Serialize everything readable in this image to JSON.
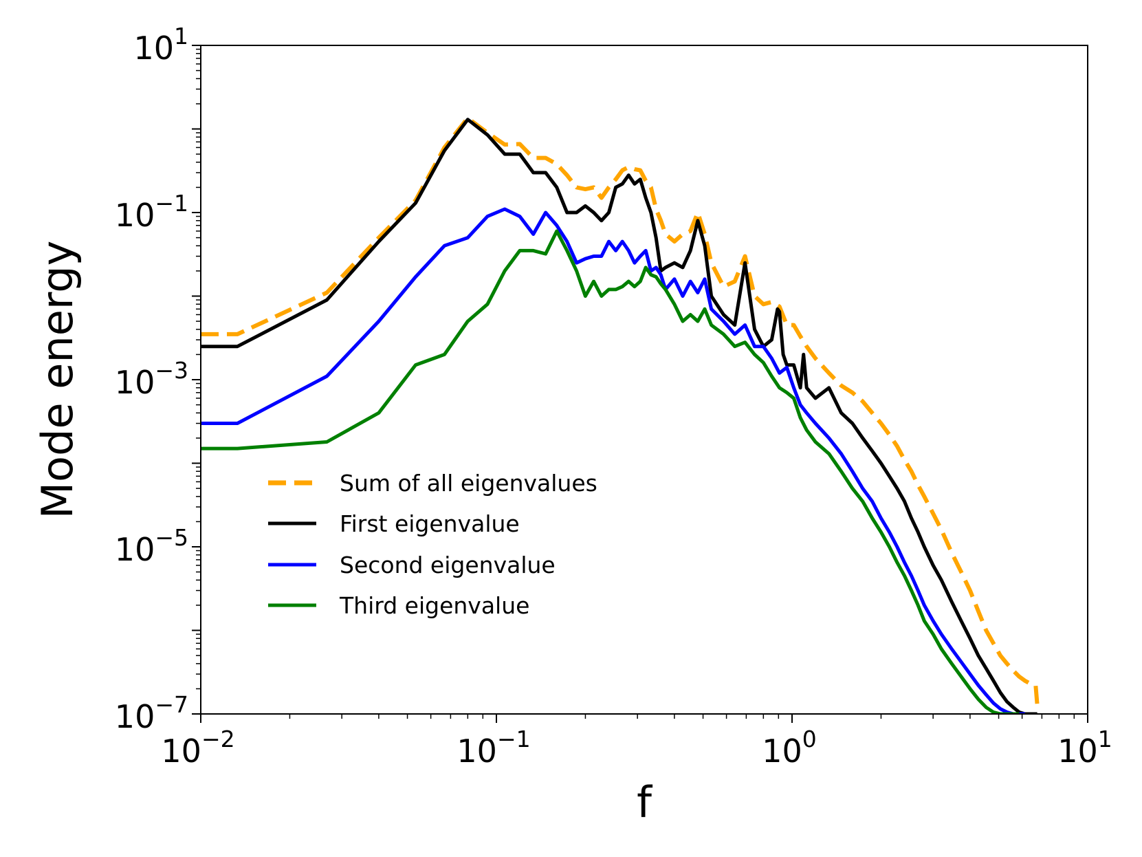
{
  "chart_data": {
    "type": "line",
    "title": "",
    "xlabel": "f",
    "ylabel": "Mode energy",
    "xscale": "log",
    "yscale": "log",
    "xlim": [
      0.01,
      10
    ],
    "ylim": [
      1e-07,
      10
    ],
    "grid": false,
    "legend_position": "lower-left",
    "x_ticks": [
      {
        "base": "10",
        "exp": "−2"
      },
      {
        "base": "10",
        "exp": "−1"
      },
      {
        "base": "10",
        "exp": "0"
      },
      {
        "base": "10",
        "exp": "1"
      }
    ],
    "y_ticks": [
      {
        "base": "10",
        "exp": "−7"
      },
      {
        "base": "10",
        "exp": "−5"
      },
      {
        "base": "10",
        "exp": "−3"
      },
      {
        "base": "10",
        "exp": "−1"
      },
      {
        "base": "10",
        "exp": "1"
      }
    ],
    "series": [
      {
        "name": "Sum of all eigenvalues",
        "color": "#FFA500",
        "style": "dashed",
        "x": [
          0.01,
          0.0133,
          0.0267,
          0.04,
          0.0533,
          0.0667,
          0.08,
          0.0933,
          0.1067,
          0.12,
          0.1333,
          0.1467,
          0.16,
          0.1733,
          0.1867,
          0.2,
          0.2133,
          0.2267,
          0.24,
          0.2533,
          0.2667,
          0.28,
          0.2933,
          0.3067,
          0.32,
          0.3333,
          0.3467,
          0.36,
          0.3733,
          0.4,
          0.4267,
          0.4533,
          0.48,
          0.5067,
          0.5333,
          0.5867,
          0.64,
          0.6933,
          0.7467,
          0.8,
          0.8533,
          0.9067,
          0.96,
          1.0133,
          1.0667,
          1.12,
          1.2,
          1.3333,
          1.4667,
          1.6,
          1.7333,
          1.8667,
          2.0,
          2.1333,
          2.2667,
          2.4,
          2.5333,
          2.6667,
          2.8,
          3.0,
          3.2,
          3.4667,
          3.7333,
          4.0,
          4.2667,
          4.5333,
          4.8,
          5.0667,
          5.3333,
          5.6,
          5.8667,
          6.1333,
          6.4,
          6.6667,
          6.75
        ],
        "y": [
          0.0035,
          0.0035,
          0.011,
          0.05,
          0.14,
          0.6,
          1.35,
          0.9,
          0.65,
          0.66,
          0.45,
          0.45,
          0.38,
          0.28,
          0.2,
          0.19,
          0.2,
          0.15,
          0.2,
          0.25,
          0.32,
          0.35,
          0.33,
          0.32,
          0.24,
          0.2,
          0.11,
          0.08,
          0.055,
          0.045,
          0.055,
          0.06,
          0.1,
          0.055,
          0.025,
          0.013,
          0.015,
          0.03,
          0.01,
          0.008,
          0.0085,
          0.0075,
          0.0045,
          0.0045,
          0.0033,
          0.0025,
          0.0018,
          0.0012,
          0.00085,
          0.0007,
          0.00055,
          0.0004,
          0.0003,
          0.00022,
          0.00016,
          0.00011,
          8e-05,
          5.5e-05,
          4e-05,
          2.5e-05,
          1.6e-05,
          8.5e-06,
          5e-06,
          3e-06,
          1.7e-06,
          1e-06,
          7e-07,
          5e-07,
          4e-07,
          3.3e-07,
          2.8e-07,
          2.5e-07,
          2.3e-07,
          2.2e-07,
          1.3e-07
        ]
      },
      {
        "name": "First eigenvalue",
        "color": "#000000",
        "style": "solid",
        "x": [
          0.01,
          0.0133,
          0.0267,
          0.04,
          0.0533,
          0.0667,
          0.08,
          0.0933,
          0.1067,
          0.12,
          0.1333,
          0.1467,
          0.16,
          0.1733,
          0.1867,
          0.2,
          0.2133,
          0.2267,
          0.24,
          0.2533,
          0.2667,
          0.28,
          0.2933,
          0.3067,
          0.32,
          0.3333,
          0.3467,
          0.36,
          0.3733,
          0.4,
          0.4267,
          0.4533,
          0.48,
          0.5067,
          0.5333,
          0.5867,
          0.64,
          0.6933,
          0.7467,
          0.8,
          0.8533,
          0.8933,
          0.9067,
          0.9333,
          0.96,
          1.0133,
          1.0667,
          1.0933,
          1.12,
          1.2,
          1.3333,
          1.4667,
          1.6,
          1.7333,
          1.8667,
          2.0,
          2.1333,
          2.2667,
          2.4,
          2.5333,
          2.6667,
          2.8,
          3.0,
          3.2,
          3.4667,
          3.7333,
          4.0,
          4.2667,
          4.5333,
          4.8,
          5.0667,
          5.3333,
          5.6,
          5.8667,
          6.1333,
          6.4,
          6.6667,
          6.75
        ],
        "y": [
          0.0025,
          0.0025,
          0.009,
          0.045,
          0.13,
          0.55,
          1.3,
          0.85,
          0.5,
          0.5,
          0.3,
          0.3,
          0.2,
          0.1,
          0.1,
          0.12,
          0.1,
          0.08,
          0.1,
          0.2,
          0.22,
          0.28,
          0.22,
          0.25,
          0.15,
          0.1,
          0.05,
          0.02,
          0.022,
          0.025,
          0.022,
          0.035,
          0.08,
          0.04,
          0.01,
          0.006,
          0.0045,
          0.025,
          0.004,
          0.0025,
          0.003,
          0.007,
          0.0065,
          0.002,
          0.0015,
          0.0015,
          0.0008,
          0.002,
          0.0008,
          0.0006,
          0.0008,
          0.0004,
          0.0003,
          0.0002,
          0.00014,
          0.0001,
          7e-05,
          5e-05,
          3.5e-05,
          2.2e-05,
          1.5e-05,
          1e-05,
          6e-06,
          4e-06,
          2.2e-06,
          1.3e-06,
          8e-07,
          5e-07,
          3.5e-07,
          2.5e-07,
          1.8e-07,
          1.4e-07,
          1.2e-07,
          1.05e-07,
          1e-07,
          1e-07,
          1e-07,
          1e-07
        ]
      },
      {
        "name": "Second eigenvalue",
        "color": "#0000FF",
        "style": "solid",
        "x": [
          0.01,
          0.0133,
          0.0267,
          0.04,
          0.0533,
          0.0667,
          0.08,
          0.0933,
          0.1067,
          0.12,
          0.1333,
          0.1467,
          0.16,
          0.1733,
          0.1867,
          0.2,
          0.2133,
          0.2267,
          0.24,
          0.2533,
          0.2667,
          0.28,
          0.2933,
          0.3067,
          0.32,
          0.3333,
          0.3467,
          0.36,
          0.3733,
          0.4,
          0.4267,
          0.4533,
          0.48,
          0.5067,
          0.5333,
          0.5867,
          0.64,
          0.6933,
          0.7467,
          0.8,
          0.8533,
          0.9067,
          0.96,
          1.0133,
          1.0667,
          1.12,
          1.2,
          1.3333,
          1.4667,
          1.6,
          1.7333,
          1.8667,
          2.0,
          2.1333,
          2.2667,
          2.4,
          2.5333,
          2.6667,
          2.8,
          3.0,
          3.2,
          3.4667,
          3.7333,
          4.0,
          4.2667,
          4.5333,
          4.8,
          5.0667,
          5.3333,
          5.6,
          5.8667,
          6.1333
        ],
        "y": [
          0.0003,
          0.0003,
          0.0011,
          0.005,
          0.017,
          0.04,
          0.05,
          0.09,
          0.11,
          0.09,
          0.055,
          0.1,
          0.07,
          0.045,
          0.025,
          0.028,
          0.03,
          0.03,
          0.045,
          0.035,
          0.045,
          0.035,
          0.025,
          0.03,
          0.035,
          0.02,
          0.022,
          0.018,
          0.012,
          0.016,
          0.01,
          0.015,
          0.011,
          0.016,
          0.007,
          0.005,
          0.0035,
          0.0045,
          0.0025,
          0.0025,
          0.0018,
          0.0012,
          0.0014,
          0.0008,
          0.0005,
          0.0004,
          0.0003,
          0.0002,
          0.00013,
          8e-05,
          5e-05,
          3.5e-05,
          2.2e-05,
          1.5e-05,
          1e-05,
          6.5e-06,
          4.5e-06,
          3e-06,
          2e-06,
          1.3e-06,
          9e-07,
          6e-07,
          4.2e-07,
          3e-07,
          2.2e-07,
          1.7e-07,
          1.35e-07,
          1.15e-07,
          1.05e-07,
          1e-07,
          1e-07,
          1e-07
        ]
      },
      {
        "name": "Third eigenvalue",
        "color": "#008000",
        "style": "solid",
        "x": [
          0.01,
          0.0133,
          0.0267,
          0.04,
          0.0533,
          0.0667,
          0.08,
          0.0933,
          0.1067,
          0.12,
          0.1333,
          0.1467,
          0.16,
          0.1733,
          0.1867,
          0.2,
          0.2133,
          0.2267,
          0.24,
          0.2533,
          0.2667,
          0.28,
          0.2933,
          0.3067,
          0.32,
          0.3333,
          0.3467,
          0.36,
          0.3733,
          0.4,
          0.4267,
          0.4533,
          0.48,
          0.5067,
          0.5333,
          0.5867,
          0.64,
          0.6933,
          0.7467,
          0.8,
          0.8533,
          0.9067,
          0.96,
          1.0133,
          1.0667,
          1.12,
          1.2,
          1.3333,
          1.4667,
          1.6,
          1.7333,
          1.8667,
          2.0,
          2.1333,
          2.2667,
          2.4,
          2.5333,
          2.6667,
          2.8,
          3.0,
          3.2,
          3.4667,
          3.7333,
          4.0,
          4.2667,
          4.5333,
          4.8,
          5.0667,
          5.3333,
          5.6,
          5.8667
        ],
        "y": [
          0.00015,
          0.00015,
          0.00018,
          0.0004,
          0.0015,
          0.002,
          0.005,
          0.008,
          0.02,
          0.035,
          0.035,
          0.032,
          0.06,
          0.035,
          0.02,
          0.01,
          0.015,
          0.01,
          0.012,
          0.012,
          0.013,
          0.015,
          0.013,
          0.015,
          0.022,
          0.018,
          0.017,
          0.014,
          0.012,
          0.008,
          0.005,
          0.006,
          0.005,
          0.007,
          0.0045,
          0.0035,
          0.0025,
          0.0028,
          0.002,
          0.0016,
          0.0011,
          0.0008,
          0.0007,
          0.0006,
          0.00035,
          0.00025,
          0.00018,
          0.00013,
          8e-05,
          5e-05,
          3.5e-05,
          2.2e-05,
          1.5e-05,
          1e-05,
          6.5e-06,
          4.5e-06,
          3e-06,
          2e-06,
          1.3e-06,
          9e-07,
          6e-07,
          4e-07,
          2.8e-07,
          2e-07,
          1.5e-07,
          1.2e-07,
          1.05e-07,
          1e-07,
          1e-07,
          1e-07,
          1e-07
        ]
      }
    ]
  }
}
